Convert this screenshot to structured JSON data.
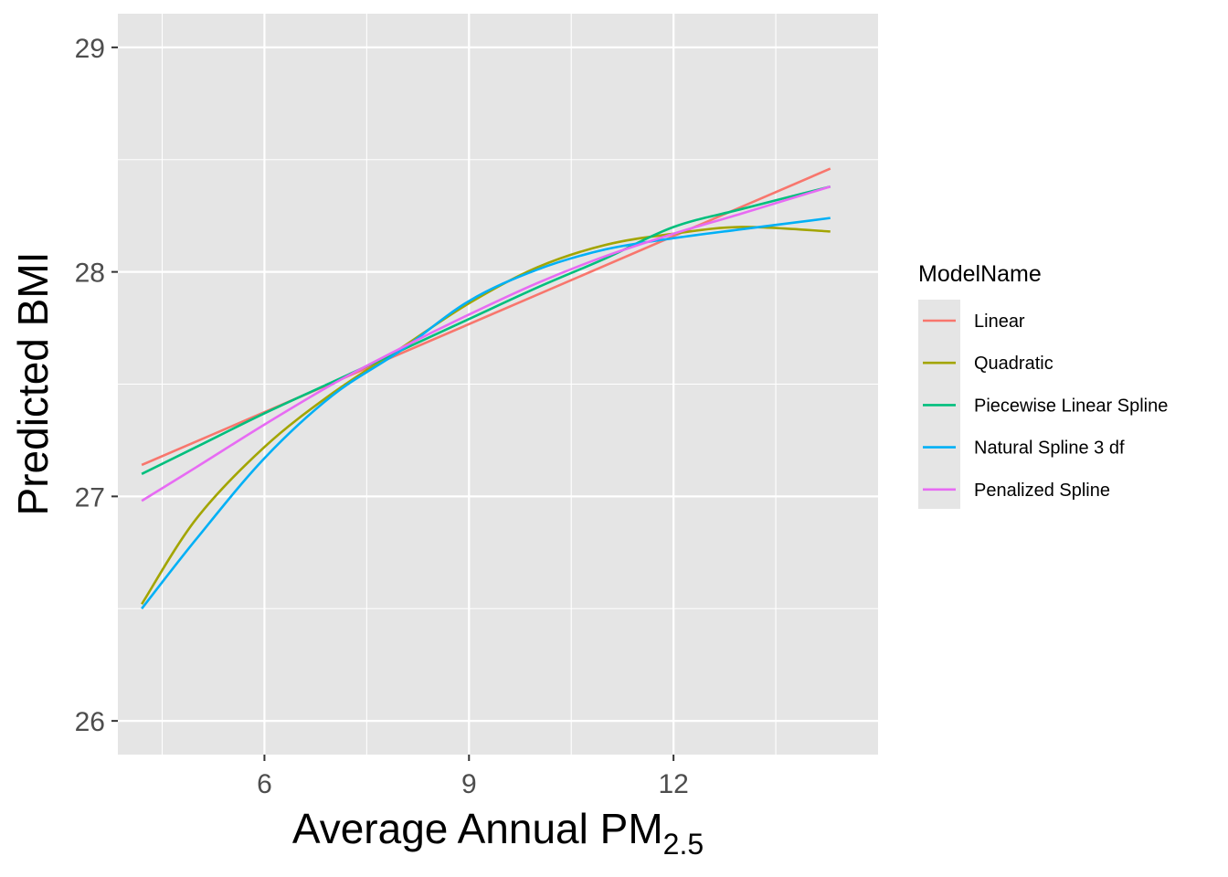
{
  "chart_data": {
    "type": "line",
    "xlabel": "Average Annual PM",
    "xlabel_subscript": "2.5",
    "ylabel": "Predicted BMI",
    "xlim": [
      3.85,
      15.0
    ],
    "ylim": [
      25.85,
      29.15
    ],
    "x_ticks": [
      6,
      9,
      12
    ],
    "x_tick_labels": [
      "6",
      "9",
      "12"
    ],
    "y_ticks": [
      26,
      27,
      28,
      29
    ],
    "y_tick_labels": [
      "26",
      "27",
      "28",
      "29"
    ],
    "grid": true,
    "legend": {
      "title": "ModelName",
      "position": "right"
    },
    "series": [
      {
        "name": "Linear",
        "color": "#F8766D",
        "x": [
          4.2,
          14.3
        ],
        "y": [
          27.14,
          28.46
        ]
      },
      {
        "name": "Quadratic",
        "color": "#A3A500",
        "x": [
          4.2,
          5.0,
          6.0,
          7.0,
          8.0,
          9.0,
          10.0,
          11.0,
          12.0,
          13.0,
          14.3
        ],
        "y": [
          26.52,
          26.9,
          27.22,
          27.46,
          27.66,
          27.86,
          28.02,
          28.12,
          28.17,
          28.2,
          28.18
        ]
      },
      {
        "name": "Piecewise Linear Spline",
        "color": "#00BF7D",
        "x": [
          4.2,
          5.0,
          6.0,
          7.0,
          8.0,
          9.0,
          10.0,
          11.0,
          12.0,
          13.0,
          14.3
        ],
        "y": [
          27.1,
          27.22,
          27.37,
          27.51,
          27.65,
          27.79,
          27.93,
          28.06,
          28.2,
          28.28,
          28.38
        ]
      },
      {
        "name": "Natural Spline 3 df",
        "color": "#00B0F6",
        "x": [
          4.2,
          5.0,
          6.0,
          7.0,
          8.0,
          9.0,
          10.0,
          11.0,
          12.0,
          13.0,
          14.3
        ],
        "y": [
          26.5,
          26.81,
          27.17,
          27.45,
          27.65,
          27.87,
          28.01,
          28.1,
          28.15,
          28.19,
          28.24
        ]
      },
      {
        "name": "Penalized Spline",
        "color": "#E76BF3",
        "x": [
          4.2,
          5.0,
          6.0,
          7.0,
          8.0,
          9.0,
          10.0,
          11.0,
          12.0,
          13.0,
          14.3
        ],
        "y": [
          26.98,
          27.13,
          27.32,
          27.5,
          27.66,
          27.81,
          27.95,
          28.07,
          28.17,
          28.26,
          28.38
        ]
      }
    ]
  }
}
